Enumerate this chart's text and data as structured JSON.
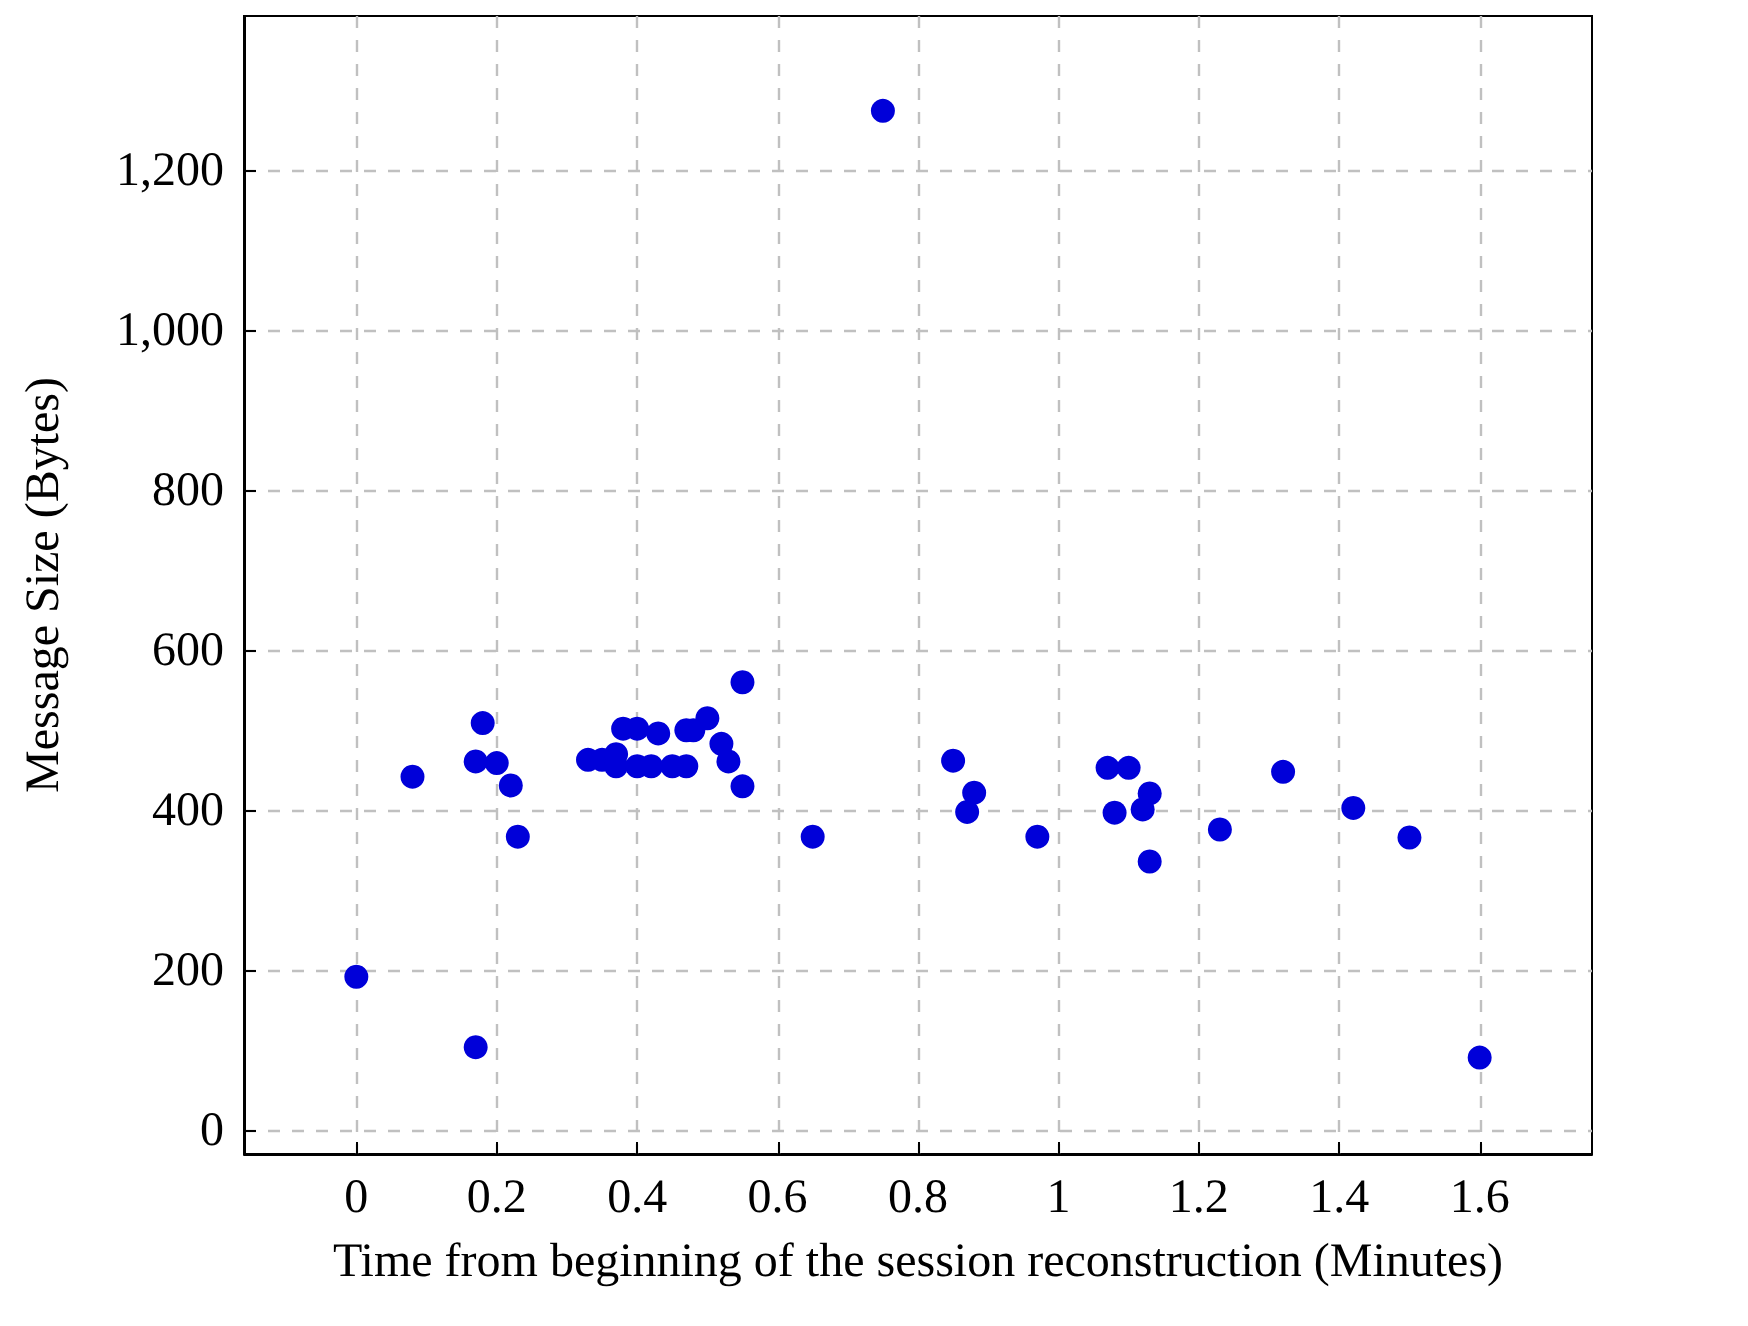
{
  "chart_data": {
    "type": "scatter",
    "xlabel": "Time from beginning of the session reconstruction (Minutes)",
    "ylabel": "Message Size (Bytes)",
    "x": [
      0,
      0.08,
      0.17,
      0.17,
      0.18,
      0.2,
      0.22,
      0.23,
      0.33,
      0.35,
      0.37,
      0.37,
      0.38,
      0.4,
      0.4,
      0.42,
      0.43,
      0.45,
      0.47,
      0.47,
      0.48,
      0.5,
      0.52,
      0.53,
      0.55,
      0.55,
      0.65,
      0.75,
      0.85,
      0.87,
      0.88,
      0.97,
      1.07,
      1.08,
      1.1,
      1.12,
      1.13,
      1.13,
      1.23,
      1.32,
      1.42,
      1.5,
      1.6
    ],
    "series": [
      {
        "color": "#0000d9",
        "values": [
          193,
          443,
          105,
          462,
          510,
          460,
          432,
          368,
          464,
          464,
          471,
          456,
          503,
          503,
          456,
          456,
          497,
          456,
          501,
          456,
          501,
          516,
          484,
          462,
          561,
          431,
          368,
          1275,
          463,
          399,
          423,
          368,
          454,
          398,
          454,
          402,
          422,
          337,
          377,
          449,
          404,
          367,
          92
        ]
      }
    ],
    "xlim": [
      -0.16,
      1.76
    ],
    "xticks": [
      0,
      0.2,
      0.4,
      0.6,
      0.8,
      1,
      1.2,
      1.4,
      1.6
    ],
    "ylim": [
      -28.5,
      1393.5
    ],
    "yticks": [
      0,
      200,
      400,
      600,
      800,
      {
        "value": 1000,
        "label": "1,000"
      },
      {
        "value": 1200,
        "label": "1,200"
      }
    ],
    "grid": true,
    "marker": "circle"
  }
}
